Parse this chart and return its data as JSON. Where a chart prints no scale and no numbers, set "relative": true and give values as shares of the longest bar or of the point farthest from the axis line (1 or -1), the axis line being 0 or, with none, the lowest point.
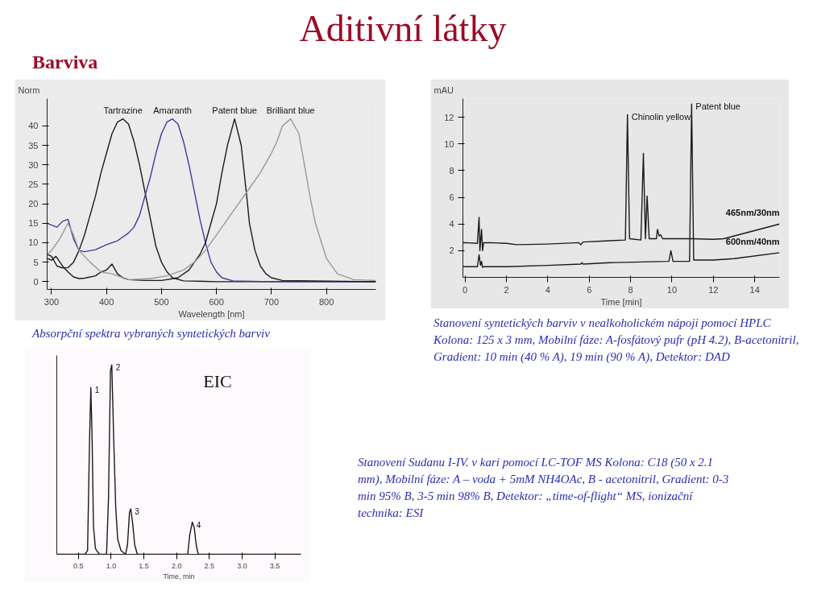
{
  "chart_data": [
    {
      "type": "line",
      "title": "Aditivní látky",
      "subtitle": "Barviva",
      "xlabel": "Wavelength [nm]",
      "ylabel": "Norm",
      "xlim": [
        292,
        890
      ],
      "ylim": [
        -2,
        47
      ],
      "xticks": [
        300,
        400,
        500,
        600,
        700,
        800
      ],
      "yticks": [
        0,
        5,
        10,
        15,
        20,
        25,
        30,
        35,
        40
      ],
      "annotations": [
        "Absorpční spektra vybraných syntetických barviv"
      ],
      "series": [
        {
          "name": "Tartrazine",
          "color": "#1a1a1a",
          "x": [
            292,
            300,
            310,
            320,
            330,
            340,
            350,
            360,
            370,
            380,
            390,
            400,
            410,
            420,
            430,
            440,
            450,
            460,
            470,
            480,
            490,
            500,
            510,
            520,
            540,
            600,
            700,
            890
          ],
          "values": [
            7,
            6.5,
            4,
            3.5,
            3.6,
            5,
            8,
            12,
            17,
            22,
            28,
            33,
            38,
            41,
            41.8,
            40.5,
            36,
            30,
            23,
            16,
            9,
            5,
            2.5,
            1,
            0.2,
            0,
            0,
            0
          ]
        },
        {
          "name": "Amaranth",
          "color": "#3c3c9c",
          "x": [
            292,
            300,
            310,
            320,
            330,
            340,
            350,
            360,
            380,
            400,
            420,
            440,
            450,
            460,
            470,
            480,
            490,
            500,
            510,
            520,
            530,
            540,
            550,
            560,
            570,
            580,
            590,
            600,
            610,
            630,
            700,
            890
          ],
          "values": [
            15,
            14.5,
            14,
            15.5,
            16,
            11,
            8,
            7.7,
            8.2,
            9.5,
            10.5,
            12.5,
            14,
            17,
            22,
            27,
            33,
            38,
            41,
            41.8,
            40.5,
            36,
            30,
            23,
            16,
            10,
            5,
            2.5,
            1,
            0.2,
            0,
            0
          ]
        },
        {
          "name": "Patent blue",
          "color": "#1a1a1a",
          "x": [
            292,
            300,
            308,
            320,
            330,
            340,
            350,
            360,
            380,
            390,
            400,
            410,
            420,
            430,
            440,
            470,
            500,
            530,
            550,
            560,
            570,
            580,
            590,
            600,
            610,
            620,
            633,
            645,
            655,
            660,
            670,
            680,
            690,
            700,
            720,
            890
          ],
          "values": [
            6,
            5.5,
            6.5,
            4,
            2.5,
            1.2,
            0.8,
            0.9,
            1.5,
            2.5,
            3,
            4.5,
            2,
            1,
            0.5,
            0.3,
            0.3,
            1,
            3,
            5,
            7,
            10,
            15,
            20,
            28,
            35,
            41.8,
            35,
            22,
            15,
            8,
            4,
            2,
            1,
            0.3,
            0
          ]
        },
        {
          "name": "Brilliant blue",
          "color": "#999999",
          "x": [
            292,
            300,
            315,
            330,
            340,
            350,
            370,
            390,
            410,
            440,
            480,
            510,
            540,
            560,
            580,
            590,
            600,
            620,
            640,
            660,
            680,
            700,
            710,
            720,
            735,
            750,
            760,
            770,
            780,
            800,
            820,
            850,
            890
          ],
          "values": [
            7,
            8,
            11,
            15,
            12,
            8,
            5,
            2.5,
            2,
            0.5,
            0.8,
            1.5,
            3,
            5,
            8,
            10,
            12,
            16,
            20,
            24,
            28,
            33,
            36,
            40,
            41.8,
            38,
            30,
            22,
            15,
            6,
            2,
            0.5,
            0.3
          ]
        }
      ]
    },
    {
      "type": "line",
      "xlabel": "Time [min]",
      "ylabel": "mAU",
      "xlim": [
        -0.1,
        15.2
      ],
      "ylim": [
        0,
        13.4
      ],
      "xticks": [
        0,
        2,
        4,
        6,
        8,
        10,
        12,
        14
      ],
      "yticks": [
        2,
        4,
        6,
        8,
        10,
        12
      ],
      "annotations": [
        {
          "text": "Stanovení syntetických barviv v nealkoholickém nápoji pomocí HPLC Kolona: 125 x 3 mm, Mobilní fáze: A-fosfátový pufr (pH 4.2), B-acetonitril, Gradient: 10 min (40 % A), 19 min (90 % A), Detektor: DAD"
        },
        {
          "text": "Chinolin yellow",
          "x": 7.85,
          "y": 12.2
        },
        {
          "text": "Patent blue",
          "x": 10.95,
          "y": 13.0
        }
      ],
      "series": [
        {
          "name": "465nm/30nm",
          "color": "#1a1a1a",
          "x": [
            -0.1,
            0,
            0.6,
            0.68,
            0.72,
            0.8,
            0.85,
            0.9,
            1.2,
            2,
            2.5,
            4,
            5.5,
            5.6,
            5.7,
            7,
            7.75,
            7.85,
            7.95,
            8.5,
            8.62,
            8.72,
            8.8,
            8.9,
            9.25,
            9.3,
            9.38,
            9.45,
            9.55,
            11,
            12,
            12.5,
            15.2
          ],
          "values": [
            2.6,
            2.6,
            2.55,
            4.5,
            2.0,
            3.6,
            2.0,
            2.6,
            2.6,
            2.55,
            2.45,
            2.5,
            2.6,
            2.45,
            2.65,
            2.75,
            2.8,
            12.2,
            2.9,
            2.8,
            9.3,
            2.9,
            6.1,
            2.9,
            2.9,
            3.6,
            3.1,
            3.2,
            2.9,
            2.9,
            2.85,
            2.9,
            4.0
          ]
        },
        {
          "name": "600nm/40nm",
          "color": "#1a1a1a",
          "x": [
            -0.1,
            0,
            0.6,
            0.68,
            0.75,
            0.8,
            0.85,
            0.9,
            2,
            4,
            5.6,
            5.65,
            5.7,
            7,
            9.85,
            9.95,
            10.05,
            10.85,
            10.95,
            11.05,
            12,
            13,
            15.2
          ],
          "values": [
            0.8,
            0.8,
            0.8,
            1.7,
            0.9,
            1.2,
            0.75,
            0.8,
            0.8,
            0.9,
            1.0,
            1.1,
            1.0,
            1.1,
            1.2,
            2.0,
            1.2,
            1.2,
            13.0,
            1.3,
            1.3,
            1.4,
            1.85
          ]
        }
      ]
    },
    {
      "type": "line",
      "relative": true,
      "xlabel": "Time, min",
      "xlim": [
        0.17,
        3.9
      ],
      "xticks": [
        {
          "value": 0.5,
          "label": "0.5"
        },
        {
          "value": 1,
          "label": "1.0"
        },
        {
          "value": 1.5,
          "label": "1.5"
        },
        {
          "value": 2,
          "label": "2.0"
        },
        {
          "value": 2.5,
          "label": "2.5"
        },
        {
          "value": 3,
          "label": "3.0"
        },
        {
          "value": 3.5,
          "label": "3.5"
        }
      ],
      "annotations": [
        "EIC",
        {
          "text": "1",
          "x": 0.69,
          "y": 0.88
        },
        {
          "text": "2",
          "x": 1.01,
          "y": 1.0
        },
        {
          "text": "3",
          "x": 1.3,
          "y": 0.24
        },
        {
          "text": "4",
          "x": 2.24,
          "y": 0.17
        },
        "Stanovení Sudanu I-IV. v kari pomocí LC-TOF MS Kolona: C18 (50 x 2.1 mm), Mobilní fáze: A – voda + 5mM NH4OAc, B - acetonitril, Gradient: 0-3 min 95% B, 3-5 min 98% B, Detektor: „time-of-flight“ MS, ionizační technika: ESI"
      ],
      "series": [
        {
          "color": "#1a1a1a",
          "x": [
            0.17,
            0.6,
            0.64,
            0.67,
            0.69,
            0.71,
            0.73,
            0.76,
            0.82,
            0.93,
            0.96,
            0.99,
            1.01,
            1.04,
            1.07,
            1.1,
            1.15,
            1.22,
            1.25,
            1.28,
            1.3,
            1.33,
            1.36,
            1.4,
            2.17,
            2.2,
            2.24,
            2.27,
            2.3,
            2.33,
            3.9
          ],
          "values": [
            0,
            0,
            0.02,
            0.6,
            0.88,
            0.6,
            0.15,
            0.03,
            0,
            0,
            0.3,
            0.97,
            1.0,
            0.6,
            0.25,
            0.08,
            0.02,
            0,
            0.05,
            0.22,
            0.24,
            0.16,
            0.05,
            0,
            0,
            0.1,
            0.17,
            0.14,
            0.05,
            0,
            0
          ]
        }
      ]
    }
  ]
}
